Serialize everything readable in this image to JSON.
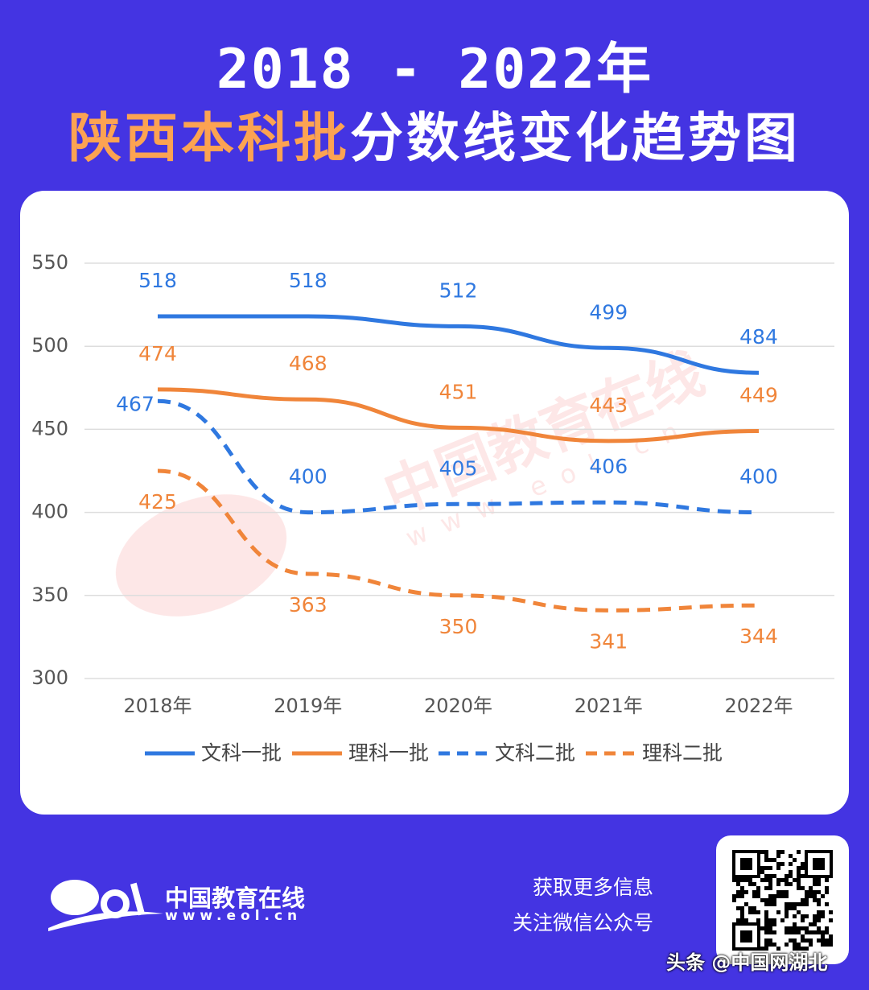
{
  "title": {
    "line1": "2018 - 2022年",
    "highlight": "陕西本科批",
    "rest": "分数线变化趋势图"
  },
  "chart_data": {
    "type": "line",
    "categories": [
      "2018年",
      "2019年",
      "2020年",
      "2021年",
      "2022年"
    ],
    "ylim": [
      300,
      550
    ],
    "yticks": [
      300,
      350,
      400,
      450,
      500,
      550
    ],
    "grid": true,
    "legend_position": "bottom",
    "series": [
      {
        "name": "文科一批",
        "values": [
          518,
          518,
          512,
          499,
          484
        ],
        "color": "#2f78e0",
        "dashed": false
      },
      {
        "name": "理科一批",
        "values": [
          474,
          468,
          451,
          443,
          449
        ],
        "color": "#f0853a",
        "dashed": false
      },
      {
        "name": "文科二批",
        "values": [
          467,
          400,
          405,
          406,
          400
        ],
        "color": "#2f78e0",
        "dashed": true
      },
      {
        "name": "理科二批",
        "values": [
          425,
          363,
          350,
          341,
          344
        ],
        "color": "#f0853a",
        "dashed": true
      }
    ]
  },
  "watermark_center": {
    "cn": "中国教育在线",
    "url": "www.eol.cn"
  },
  "footer": {
    "logo_cn": "中国教育在线",
    "logo_url": "www.eol.cn",
    "info1": "获取更多信息",
    "info2": "关注微信公众号",
    "source": "头条 @中国网湖北"
  },
  "colors": {
    "background": "#4434e2",
    "highlight": "#fca352"
  }
}
